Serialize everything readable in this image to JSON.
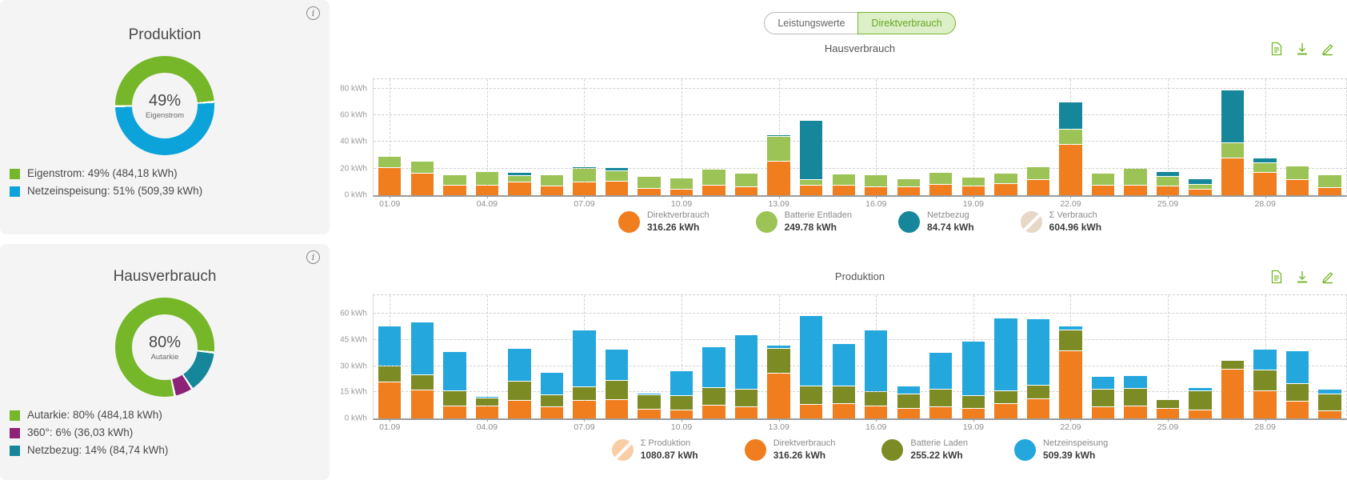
{
  "left_panels": {
    "production": {
      "title": "Produktion",
      "center": {
        "value": "49%",
        "label": "Eigenstrom"
      },
      "legend": [
        {
          "label": "Eigenstrom: 49% (484,18 kWh)",
          "color": "#76b72a"
        },
        {
          "label": "Netzeinspeisung: 51% (509,39 kWh)",
          "color": "#0ba3da"
        }
      ]
    },
    "consumption": {
      "title": "Hausverbrauch",
      "center": {
        "value": "80%",
        "label": "Autarkie"
      },
      "legend": [
        {
          "label": "Autarkie: 80% (484,18 kWh)",
          "color": "#76b72a"
        },
        {
          "label": "360°: 6% (36,03 kWh)",
          "color": "#8c2377"
        },
        {
          "label": "Netzbezug: 14% (84,74 kWh)",
          "color": "#16879b"
        }
      ]
    }
  },
  "toggle": {
    "options": [
      {
        "label": "Leistungswerte",
        "selected": false
      },
      {
        "label": "Direktverbrauch",
        "selected": true
      }
    ]
  },
  "toolbar_icon_names": [
    "report-icon",
    "download-icon",
    "edit-icon"
  ],
  "chart_data": [
    {
      "type": "pie",
      "title": "Produktion",
      "center": {
        "value": "49%",
        "label": "Eigenstrom"
      },
      "start_deg": 268,
      "segments": [
        {
          "label": "Eigenstrom",
          "pct": 49,
          "value": "484,18 kWh",
          "color": "#76b72a"
        },
        {
          "label": "Netzeinspeisung",
          "pct": 51,
          "value": "509,39 kWh",
          "color": "#0ba3da"
        }
      ]
    },
    {
      "type": "pie",
      "title": "Hausverbrauch",
      "center": {
        "value": "80%",
        "label": "Autarkie"
      },
      "start_deg": 95,
      "segments": [
        {
          "label": "Netzbezug",
          "pct": 14,
          "value": "84,74 kWh",
          "color": "#16879b"
        },
        {
          "label": "360°",
          "pct": 6,
          "value": "36,03 kWh",
          "color": "#8c2377"
        },
        {
          "label": "Autarkie",
          "pct": 80,
          "value": "484,18 kWh",
          "color": "#76b72a"
        }
      ]
    },
    {
      "type": "bar",
      "stacked": true,
      "title": "Hausverbrauch",
      "y_unit": "kWh",
      "yticks": [
        0,
        20,
        40,
        60,
        80
      ],
      "ylim": [
        0,
        80
      ],
      "render_ymax": 89,
      "grid": true,
      "categories": [
        "01.09",
        "02.09",
        "03.09",
        "04.09",
        "05.09",
        "06.09",
        "07.09",
        "08.09",
        "09.09",
        "10.09",
        "11.09",
        "12.09",
        "13.09",
        "14.09",
        "15.09",
        "16.09",
        "17.09",
        "18.09",
        "19.09",
        "20.09",
        "21.09",
        "22.09",
        "23.09",
        "24.09",
        "25.09",
        "26.09",
        "27.09",
        "28.09",
        "29.09",
        "30.09"
      ],
      "x_tick_indices": [
        0,
        3,
        6,
        9,
        12,
        15,
        18,
        21,
        24,
        27
      ],
      "x_tick_labels": [
        "01.09",
        "04.09",
        "07.09",
        "10.09",
        "13.09",
        "16.09",
        "19.09",
        "22.09",
        "25.09",
        "28.09"
      ],
      "series": [
        {
          "name": "Direktverbrauch",
          "color": "#f07d1e",
          "values": [
            20.5,
            16,
            7,
            7,
            9.5,
            6.5,
            9.5,
            10,
            5,
            4.5,
            7.5,
            6,
            25,
            7.5,
            7,
            6,
            6,
            8,
            6.5,
            8.5,
            11.5,
            38,
            7,
            7.5,
            6.5,
            4.5,
            27.5,
            17,
            11.5,
            5.5
          ]
        },
        {
          "name": "Batterie Entladen",
          "color": "#9cc356",
          "values": [
            7.5,
            8.5,
            7.5,
            10,
            4.5,
            8,
            10,
            7.5,
            8,
            7.5,
            11,
            9.5,
            18.5,
            3.5,
            8,
            8.5,
            5.5,
            8.5,
            6,
            7,
            9,
            10.5,
            8.5,
            11.5,
            7,
            3,
            11,
            6.5,
            9.5,
            9
          ]
        },
        {
          "name": "Netzbezug",
          "color": "#16879b",
          "values": [
            0,
            0,
            0,
            0,
            1.5,
            0,
            0.5,
            1.5,
            0,
            0,
            0,
            0,
            0.5,
            43.5,
            0,
            0,
            0,
            0,
            0,
            0,
            0,
            20,
            0,
            0,
            3,
            3.5,
            39,
            3,
            0,
            0
          ]
        }
      ],
      "legend": [
        {
          "label": "Direktverbrauch",
          "value": "316.26 kWh",
          "color": "#f07d1e",
          "disabled": false
        },
        {
          "label": "Batterie Entladen",
          "value": "249.78 kWh",
          "color": "#9cc356",
          "disabled": false
        },
        {
          "label": "Netzbezug",
          "value": "84.74 kWh",
          "color": "#16879b",
          "disabled": false
        },
        {
          "label": "Σ Verbrauch",
          "value": "604.96 kWh",
          "color": "#e7d7c7",
          "disabled": true
        }
      ],
      "legend_position": "bottom"
    },
    {
      "type": "bar",
      "stacked": true,
      "title": "Produktion",
      "y_unit": "kWh",
      "yticks": [
        0,
        15,
        30,
        45,
        60
      ],
      "ylim": [
        0,
        60
      ],
      "render_ymax": 72,
      "grid": true,
      "categories": [
        "01.09",
        "02.09",
        "03.09",
        "04.09",
        "05.09",
        "06.09",
        "07.09",
        "08.09",
        "09.09",
        "10.09",
        "11.09",
        "12.09",
        "13.09",
        "14.09",
        "15.09",
        "16.09",
        "17.09",
        "18.09",
        "19.09",
        "20.09",
        "21.09",
        "22.09",
        "23.09",
        "24.09",
        "25.09",
        "26.09",
        "27.09",
        "28.09",
        "29.09",
        "30.09"
      ],
      "x_tick_indices": [
        0,
        3,
        6,
        9,
        12,
        15,
        18,
        21,
        24,
        27
      ],
      "x_tick_labels": [
        "01.09",
        "04.09",
        "07.09",
        "10.09",
        "13.09",
        "16.09",
        "19.09",
        "22.09",
        "25.09",
        "28.09"
      ],
      "series": [
        {
          "name": "Direktverbrauch",
          "color": "#f07d1e",
          "values": [
            20.5,
            16,
            7,
            7,
            10,
            6.5,
            10,
            10.5,
            5,
            4.5,
            7.5,
            6.5,
            25.5,
            8,
            8.5,
            7,
            5.5,
            6.5,
            5.5,
            8.5,
            11,
            38.5,
            6.5,
            7,
            5.5,
            4.5,
            28,
            15.5,
            9.5,
            4
          ]
        },
        {
          "name": "Batterie Laden",
          "color": "#7d8b25",
          "values": [
            9,
            8.5,
            8,
            4,
            10.5,
            6.5,
            7.5,
            10.5,
            8,
            8,
            9.5,
            9.5,
            14,
            10,
            9.5,
            7.5,
            8,
            9.5,
            7,
            6.5,
            7.5,
            11.5,
            9.5,
            9.5,
            4.5,
            10.5,
            4.5,
            11.5,
            10,
            9.5
          ]
        },
        {
          "name": "Netzeinspeisung",
          "color": "#23a7dd",
          "values": [
            22.5,
            29.5,
            22,
            0.5,
            18.5,
            12,
            32,
            17.5,
            0.5,
            13.5,
            23,
            31,
            1.5,
            40,
            24,
            35,
            4,
            20.5,
            30.5,
            41.5,
            37.5,
            2,
            7,
            7,
            0,
            1.5,
            0,
            11.5,
            18,
            2
          ]
        }
      ],
      "legend": [
        {
          "label": "Σ Produktion",
          "value": "1080.87 kWh",
          "color": "#f9cda6",
          "disabled": true
        },
        {
          "label": "Direktverbrauch",
          "value": "316.26 kWh",
          "color": "#f07d1e",
          "disabled": false
        },
        {
          "label": "Batterie Laden",
          "value": "255.22 kWh",
          "color": "#7d8b25",
          "disabled": false
        },
        {
          "label": "Netzeinspeisung",
          "value": "509.39 kWh",
          "color": "#23a7dd",
          "disabled": false
        }
      ],
      "legend_position": "bottom"
    }
  ]
}
